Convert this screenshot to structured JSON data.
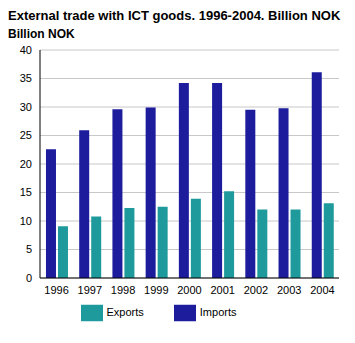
{
  "chart_data": {
    "type": "bar",
    "title": "External trade with ICT goods. 1996-2004. Billion NOK",
    "y_label": "Billion NOK",
    "categories": [
      "1996",
      "1997",
      "1998",
      "1999",
      "2000",
      "2001",
      "2002",
      "2003",
      "2004"
    ],
    "series": [
      {
        "name": "Imports",
        "color": "#1c1c9c",
        "values": [
          22.6,
          25.9,
          29.6,
          29.9,
          34.2,
          34.2,
          29.5,
          29.8,
          36.1
        ]
      },
      {
        "name": "Exports",
        "color": "#1f9a9c",
        "values": [
          9.1,
          10.8,
          12.3,
          12.5,
          13.9,
          15.2,
          12.0,
          12.0,
          13.1
        ]
      }
    ],
    "ylim": [
      0,
      40
    ],
    "yticks": [
      0,
      5,
      10,
      15,
      20,
      25,
      30,
      35,
      40
    ],
    "grid": true,
    "legend": "bottom"
  }
}
